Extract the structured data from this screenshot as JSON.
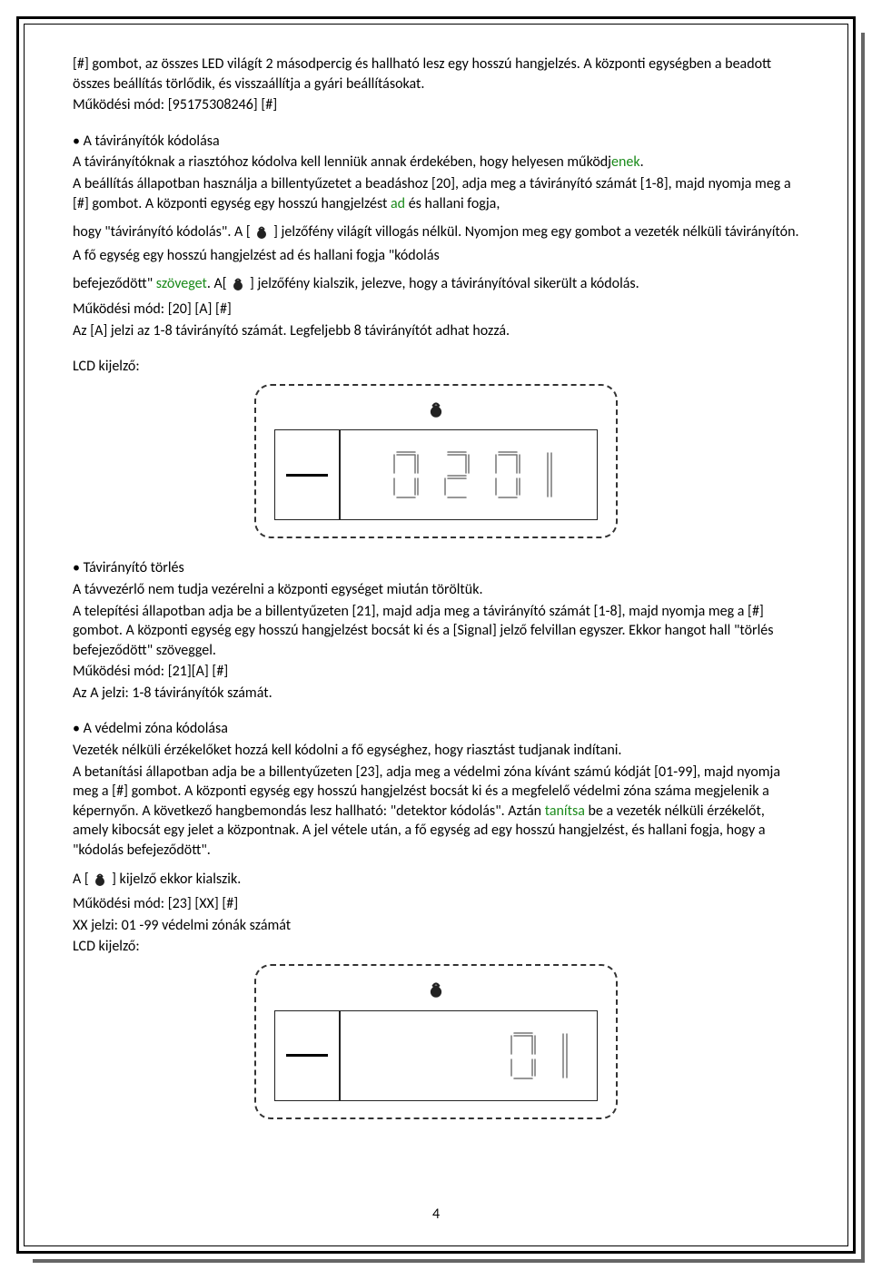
{
  "intro": {
    "p1": "[#] gombot, az összes LED világít 2 másodpercig és hallható lesz egy hosszú hangjelzés. A központi egységben a  beadott összes beállítás törlődik, és visszaállítja a gyári beállításokat.",
    "p2": "Működési mód: [95175308246]  [#]"
  },
  "section1": {
    "title": "• A távirányítók kódolása",
    "p1a": "A távirányítóknak a riasztóhoz kódolva kell lenniük annak érdekében, hogy  helyesen működj",
    "p1b_green": "enek",
    "p1c": ".",
    "p2a": "A beállítás állapotban használja a billentyűzetet a beadáshoz [20], adja meg a távirányító számát [1-8], majd nyomja meg a [#] gombot. A központi egység  egy hosszú hangjelzést ",
    "p2b_green": "ad",
    "p2c": " és hallani fogja,",
    "p3a": "hogy  \"távirányító kódolás\". A [ ",
    "p3b": " ] jelzőfény világít villogás nélkül. Nyomjon meg egy gombot a vezeték nélküli távirányítón. A fő egység egy hosszú hangjelzést ad  és hallani fogja \"kódolás",
    "p4a": "befejeződött\" ",
    "p4b_green": "szöveget",
    "p4c": ". A[ ",
    "p4d": " ] jelzőfény kialszik, jelezve, hogy a távirányítóval sikerült a kódolás.",
    "p5": "Működési mód: [20]  [A]  [#]",
    "p6": "Az [A] jelzi az 1-8 távirányító számát. Legfeljebb 8 távirányítót adhat hozzá.",
    "lcd_label": "LCD kijelző:"
  },
  "section2": {
    "title": " • Távirányító törlés",
    "p1": "A távvezérlő nem tudja vezérelni a központi egységet miután töröltük.",
    "p2": "A telepítési állapotban adja be a billentyűzeten [21], majd adja meg a távirányító számát [1-8], majd nyomja meg a [#] gombot. A központi egység egy hosszú hangjelzést bocsát ki és a [Signal] jelző felvillan egyszer. Ekkor  hangot hall \"törlés befejeződött\" szöveggel.",
    "p3": "Működési mód: [21][A]  [#]",
    "p4": "Az A jelzi: 1-8 távirányítók számát."
  },
  "section3": {
    "title": "• A védelmi zóna kódolása",
    "p1": "Vezeték nélküli érzékelőket hozzá kell kódolni a fő egységhez, hogy riasztást tudjanak indítani.",
    "p2a": "A betanítási állapotban adja be a billentyűzeten [23], adja meg a védelmi zóna kívánt számú kódját [01-99], majd nyomja meg a [#] gombot. A központi egység egy hosszú hangjelzést bocsát ki és a megfelelő  védelmi zóna száma megjelenik a képernyőn. A következő hangbemondás lesz hallható: \"detektor kódolás\". Aztán ",
    "p2b_green": "tanítsa",
    "p2c": " be a vezeték nélküli érzékelőt, amely kibocsát egy jelet a központnak. A jel vétele után, a fő egység ad egy hosszú hangjelzést, és hallani fogja, hogy a \"kódolás befejeződött\".",
    "p3a": "A [ ",
    "p3b": " ] kijelző ekkor kialszik.",
    "p4": "Működési mód: [23]  [XX]  [#]",
    "p5": "XX jelzi: 01 -99 védelmi zónák számát",
    "lcd_label": "LCD kijelző:"
  },
  "lcd1": {
    "digits": "020",
    "trailing_one": true,
    "seg_stroke": "#777",
    "seg_width": 30,
    "seg_height": 54,
    "one_height": 54
  },
  "lcd2": {
    "digits": "0",
    "trailing_one": true,
    "seg_stroke": "#777",
    "seg_width": 30,
    "seg_height": 54,
    "one_height": 54,
    "leading_gap": 120
  },
  "pagenum": "4",
  "colors": {
    "green": "#1a8a1a",
    "text": "#000000",
    "seg": "#777777",
    "border": "#000000"
  }
}
